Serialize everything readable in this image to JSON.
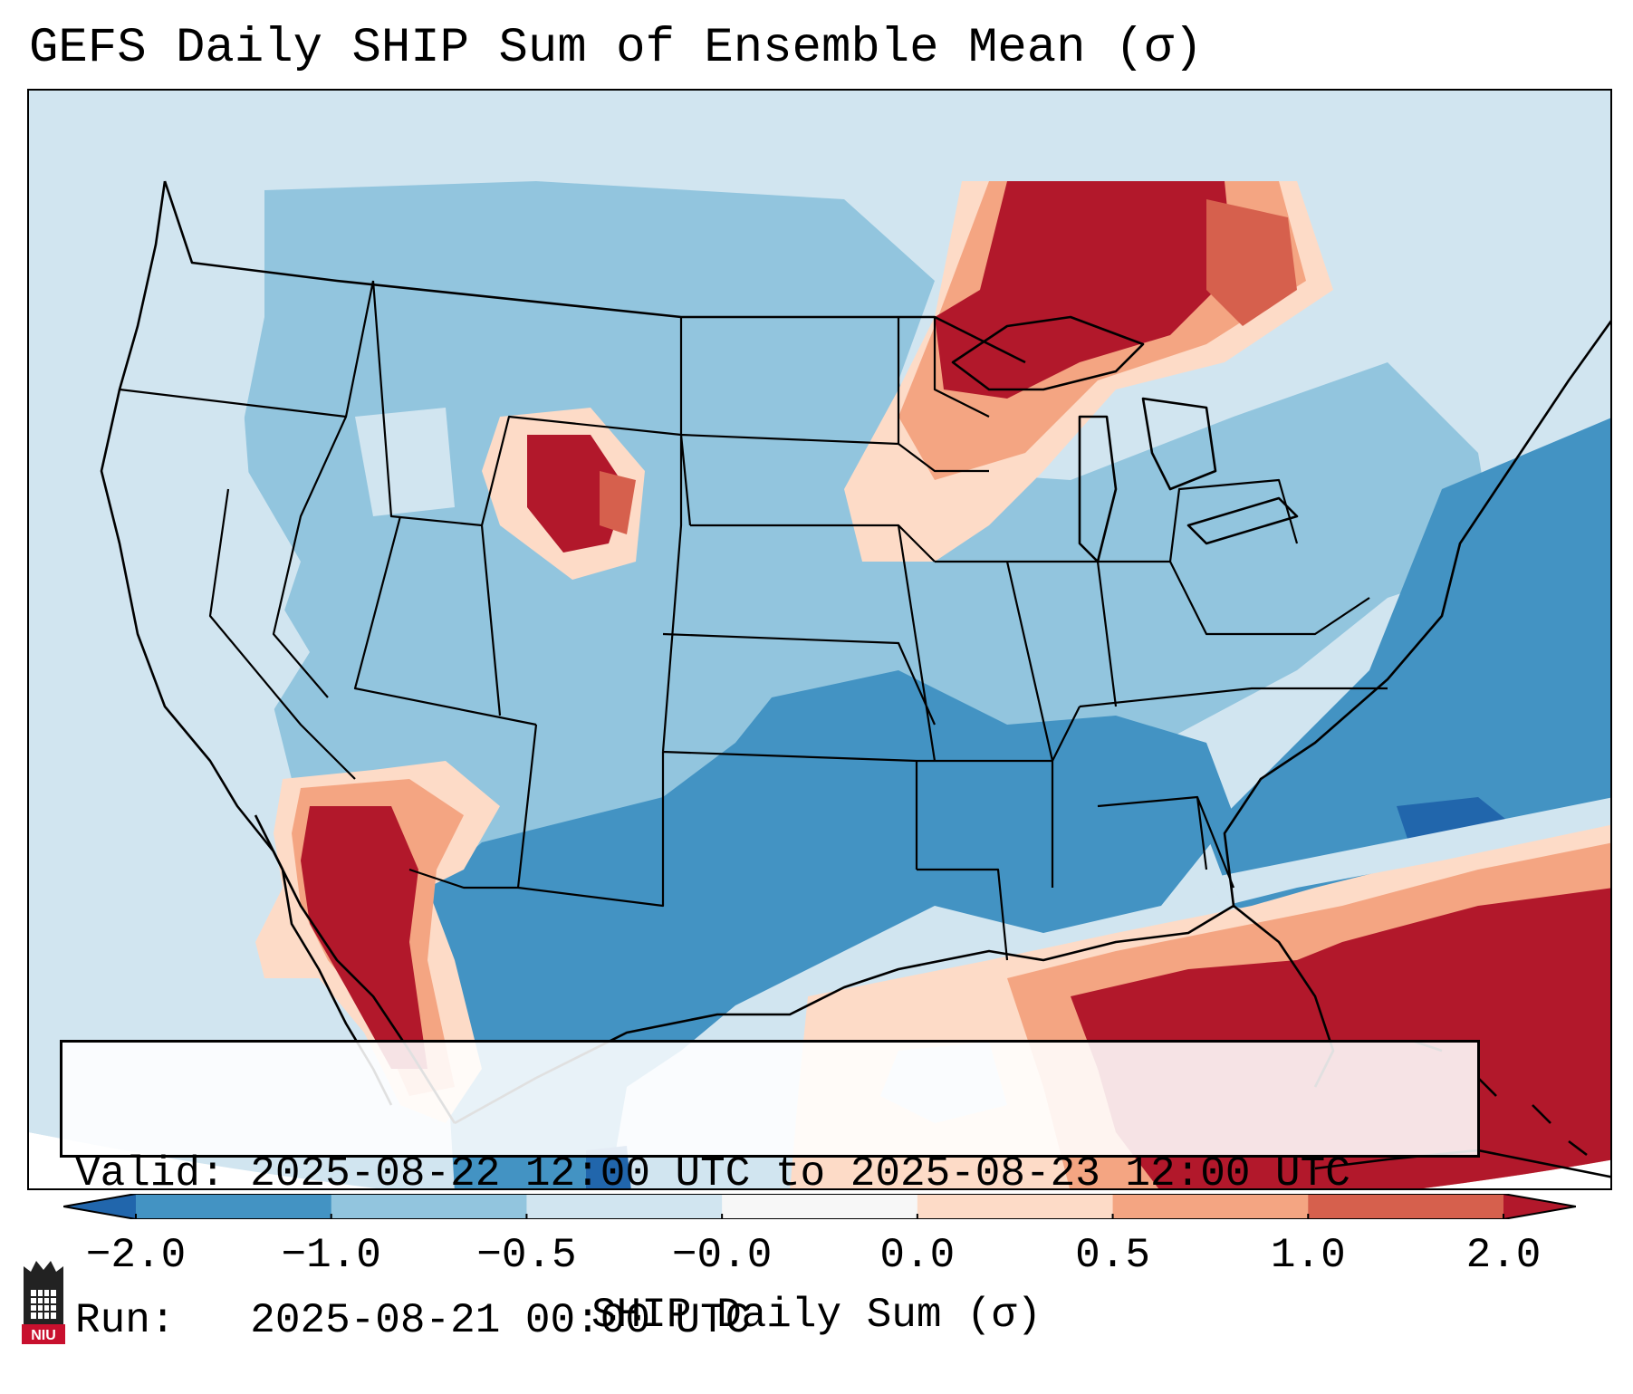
{
  "title": "GEFS Daily SHIP Sum of Ensemble Mean (σ)",
  "info": {
    "valid_label": "Valid:",
    "valid_value": "2025-08-22 12:00 UTC to 2025-08-23 12:00 UTC",
    "run_label": "Run:",
    "run_value": "2025-08-21 00:00 UTC"
  },
  "colorbar": {
    "label": "SHIP Daily Sum (σ)",
    "ticks": [
      "−2.0",
      "−1.0",
      "−0.5",
      "−0.0",
      "0.0",
      "0.5",
      "1.0",
      "2.0"
    ],
    "colors": [
      "#2166ac",
      "#4393c3",
      "#92c5de",
      "#d1e5f0",
      "#fddbc7",
      "#f4a582",
      "#d6604d",
      "#b2182b"
    ],
    "extend": "both"
  },
  "logo": {
    "text": "NIU",
    "colors": {
      "red": "#c8102e",
      "dark": "#222222"
    }
  }
}
